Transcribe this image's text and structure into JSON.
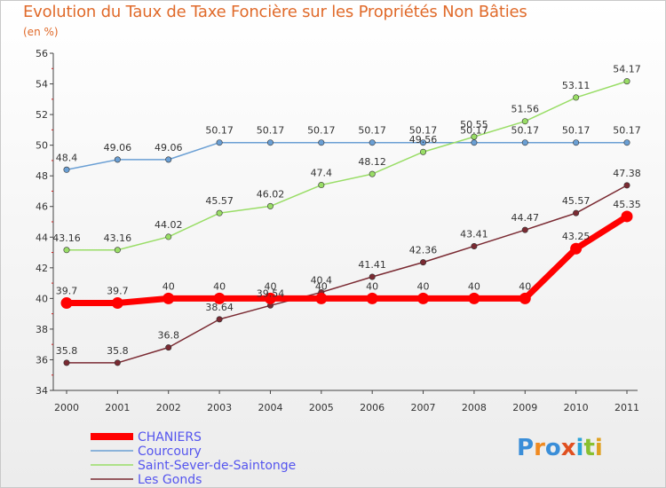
{
  "title": "Evolution du Taux de Taxe Foncière sur les Propriétés Non Bâties",
  "unit_label": "(en %)",
  "logo_text": "Proxiti",
  "chart_data": {
    "type": "line",
    "title": "Evolution du Taux de Taxe Foncière sur les Propriétés Non Bâties",
    "ylabel": "(en %)",
    "xlabel": "",
    "x": [
      "2000",
      "2001",
      "2002",
      "2003",
      "2004",
      "2005",
      "2006",
      "2007",
      "2008",
      "2009",
      "2010",
      "2011"
    ],
    "ylim": [
      34,
      56
    ],
    "yticks": [
      "34",
      "36",
      "38",
      "40",
      "42",
      "44",
      "46",
      "48",
      "50",
      "52",
      "54",
      "56"
    ],
    "grid": false,
    "legend_position": "bottom-left",
    "series": [
      {
        "name": "CHANIERS",
        "color": "#ff0000",
        "values": [
          39.7,
          39.7,
          40,
          40,
          40,
          40,
          40,
          40,
          40,
          40,
          43.25,
          45.35
        ],
        "labels": [
          "39.7",
          "39.7",
          "40",
          "40",
          "40",
          "40",
          "40",
          "40",
          "40",
          "40",
          "43.25",
          "45.35"
        ]
      },
      {
        "name": "Courcoury",
        "color": "#6a9fd4",
        "values": [
          48.4,
          49.06,
          49.06,
          50.17,
          50.17,
          50.17,
          50.17,
          50.17,
          50.17,
          50.17,
          50.17,
          50.17
        ],
        "labels": [
          "48.4",
          "49.06",
          "49.06",
          "50.17",
          "50.17",
          "50.17",
          "50.17",
          "50.17",
          "50.17",
          "50.17",
          "50.17",
          "50.17"
        ]
      },
      {
        "name": "Saint-Sever-de-Saintonge",
        "color": "#99dd66",
        "values": [
          43.16,
          43.16,
          44.02,
          45.57,
          46.02,
          47.4,
          48.12,
          49.56,
          50.55,
          51.56,
          53.11,
          54.17
        ],
        "labels": [
          "43.16",
          "43.16",
          "44.02",
          "45.57",
          "46.02",
          "47.4",
          "48.12",
          "49.56",
          "50.55",
          "51.56",
          "53.11",
          "54.17"
        ]
      },
      {
        "name": "Les Gonds",
        "color": "#7a2a32",
        "values": [
          35.8,
          35.8,
          36.8,
          38.64,
          39.54,
          40.4,
          41.41,
          42.36,
          43.41,
          44.47,
          45.57,
          47.38
        ],
        "labels": [
          "35.8",
          "35.8",
          "36.8",
          "38.64",
          "39.54",
          "40.4",
          "41.41",
          "42.36",
          "43.41",
          "44.47",
          "45.57",
          "47.38"
        ]
      }
    ]
  }
}
